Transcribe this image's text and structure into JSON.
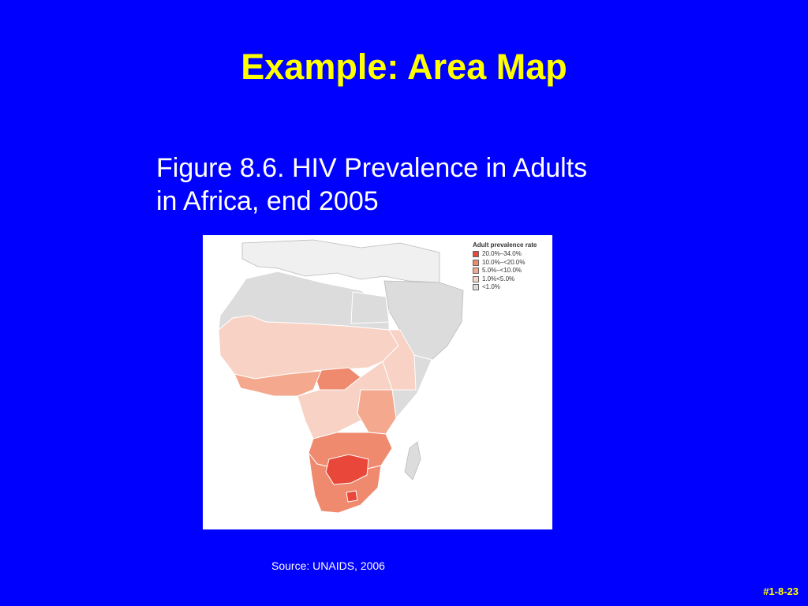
{
  "slide": {
    "title": "Example: Area Map",
    "caption_line1": "Figure 8.6. HIV Prevalence in Adults",
    "caption_line2": "in Africa, end 2005",
    "source": "Source: UNAIDS, 2006",
    "slide_number": "#1-8-23"
  },
  "legend": {
    "title": "Adult prevalence rate",
    "items": [
      {
        "label": "20.0%–34.0%",
        "color": "#e8473a"
      },
      {
        "label": "10.0%–<20.0%",
        "color": "#ef8a6e"
      },
      {
        "label": "5.0%–<10.0%",
        "color": "#f4a98e"
      },
      {
        "label": "1.0%<5.0%",
        "color": "#f8d2c4"
      },
      {
        "label": "<1.0%",
        "color": "#dcdcdc"
      }
    ]
  },
  "colors": {
    "background": "#0000ff",
    "title": "#ffff00",
    "caption": "#ffffff",
    "map_border": "#ffffff",
    "no_data_land": "#f0f0f0"
  }
}
